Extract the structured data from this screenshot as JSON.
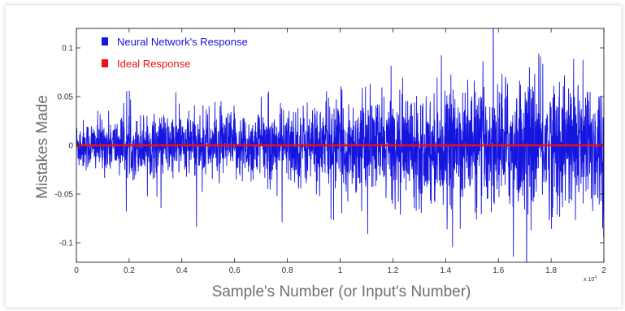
{
  "chart_data": {
    "type": "line",
    "title": "",
    "xlabel": "Sample's Number (or Input's Number)",
    "ylabel": "Mistakes Made",
    "x_multiplier_label": "x 10",
    "x_multiplier_exponent": "4",
    "xlim": [
      0,
      2
    ],
    "ylim": [
      -0.12,
      0.12
    ],
    "x_ticks": [
      0,
      0.2,
      0.4,
      0.6,
      0.8,
      1,
      1.2,
      1.4,
      1.6,
      1.8,
      2
    ],
    "x_tick_labels": [
      "0",
      "0.2",
      "0.4",
      "0.6",
      "0.8",
      "1",
      "1.2",
      "1.4",
      "1.6",
      "1.8",
      "2"
    ],
    "y_ticks": [
      0.1,
      0.05,
      0,
      -0.05,
      -0.1
    ],
    "y_tick_labels": [
      "0.1",
      "0.05",
      "0",
      "-0.05",
      "-0.1"
    ],
    "grid": false,
    "legend_position": "top-left",
    "series": [
      {
        "name": "Neural Network's Response",
        "color": "#1515e0",
        "description": "noisy error signal centred at 0, amplitude growing with sample number",
        "envelope_x": [
          0,
          0.2,
          0.4,
          0.6,
          0.8,
          1.0,
          1.2,
          1.4,
          1.6,
          1.8,
          2.0
        ],
        "envelope_upper": [
          0.03,
          0.035,
          0.04,
          0.04,
          0.045,
          0.055,
          0.06,
          0.065,
          0.075,
          0.08,
          0.085
        ],
        "envelope_lower": [
          -0.03,
          -0.035,
          -0.04,
          -0.04,
          -0.045,
          -0.055,
          -0.06,
          -0.065,
          -0.075,
          -0.08,
          -0.085
        ]
      },
      {
        "name": "Ideal Response",
        "color": "#ee1111",
        "x": [
          0,
          2
        ],
        "y": [
          0,
          0
        ]
      }
    ]
  }
}
